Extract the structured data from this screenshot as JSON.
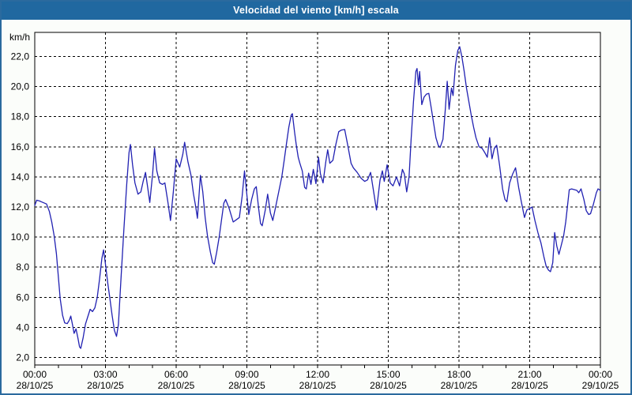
{
  "window": {
    "title": "Velocidad del viento [km/h] escala"
  },
  "colors": {
    "titlebar_bg": "#2068a0",
    "window_border": "#2a6a9e",
    "page_bg": "#fbfdfa",
    "plot_bg": "#ffffff",
    "grid": "#000000",
    "line": "#2121b2",
    "text": "#000000"
  },
  "chart_data": {
    "type": "line",
    "title": "Velocidad del viento [km/h] escala",
    "xlabel": "",
    "ylabel": "km/h",
    "xlim": [
      0,
      24
    ],
    "ylim": [
      1.5,
      23.6
    ],
    "grid": "dashed",
    "legend_position": "none",
    "y_ticks": [
      {
        "v": 2,
        "label": "2,0"
      },
      {
        "v": 4,
        "label": "4,0"
      },
      {
        "v": 6,
        "label": "6,0"
      },
      {
        "v": 8,
        "label": "8,0"
      },
      {
        "v": 10,
        "label": "10,0"
      },
      {
        "v": 12,
        "label": "12,0"
      },
      {
        "v": 14,
        "label": "14,0"
      },
      {
        "v": 16,
        "label": "16,0"
      },
      {
        "v": 18,
        "label": "18,0"
      },
      {
        "v": 20,
        "label": "20,0"
      },
      {
        "v": 22,
        "label": "22,0"
      }
    ],
    "x_ticks": [
      {
        "t": 0,
        "time": "00:00",
        "date": "28/10/25"
      },
      {
        "t": 3,
        "time": "03:00",
        "date": "28/10/25"
      },
      {
        "t": 6,
        "time": "06:00",
        "date": "28/10/25"
      },
      {
        "t": 9,
        "time": "09:00",
        "date": "28/10/25"
      },
      {
        "t": 12,
        "time": "12:00",
        "date": "28/10/25"
      },
      {
        "t": 15,
        "time": "15:00",
        "date": "28/10/25"
      },
      {
        "t": 18,
        "time": "18:00",
        "date": "28/10/25"
      },
      {
        "t": 21,
        "time": "21:00",
        "date": "28/10/25"
      },
      {
        "t": 24,
        "time": "00:00",
        "date": "29/10/25"
      }
    ],
    "minor_x_tick_every_hours": 1,
    "series": [
      {
        "name": "Velocidad del viento [km/h]",
        "color": "#2121b2",
        "points": [
          [
            0,
            12.1
          ],
          [
            0.08,
            12.45
          ],
          [
            0.2,
            12.4
          ],
          [
            0.35,
            12.3
          ],
          [
            0.5,
            12.2
          ],
          [
            0.62,
            11.7
          ],
          [
            0.72,
            11.0
          ],
          [
            0.82,
            10.1
          ],
          [
            0.92,
            8.9
          ],
          [
            1.0,
            7.4
          ],
          [
            1.08,
            5.9
          ],
          [
            1.18,
            4.8
          ],
          [
            1.27,
            4.3
          ],
          [
            1.38,
            4.25
          ],
          [
            1.47,
            4.5
          ],
          [
            1.53,
            4.75
          ],
          [
            1.6,
            4.2
          ],
          [
            1.67,
            3.6
          ],
          [
            1.75,
            3.9
          ],
          [
            1.83,
            3.3
          ],
          [
            1.9,
            2.7
          ],
          [
            1.95,
            2.6
          ],
          [
            2.05,
            3.3
          ],
          [
            2.15,
            4.2
          ],
          [
            2.25,
            4.7
          ],
          [
            2.35,
            5.2
          ],
          [
            2.45,
            5.05
          ],
          [
            2.55,
            5.3
          ],
          [
            2.65,
            6.0
          ],
          [
            2.75,
            7.2
          ],
          [
            2.85,
            8.6
          ],
          [
            2.92,
            9.15
          ],
          [
            3.0,
            8.2
          ],
          [
            3.1,
            6.9
          ],
          [
            3.18,
            6.0
          ],
          [
            3.28,
            4.8
          ],
          [
            3.38,
            3.8
          ],
          [
            3.47,
            3.4
          ],
          [
            3.55,
            4.2
          ],
          [
            3.65,
            7.0
          ],
          [
            3.78,
            10.5
          ],
          [
            3.9,
            13.5
          ],
          [
            4.0,
            15.6
          ],
          [
            4.06,
            16.15
          ],
          [
            4.15,
            14.8
          ],
          [
            4.25,
            13.6
          ],
          [
            4.38,
            12.85
          ],
          [
            4.5,
            13.0
          ],
          [
            4.6,
            13.7
          ],
          [
            4.7,
            14.3
          ],
          [
            4.8,
            13.2
          ],
          [
            4.88,
            12.3
          ],
          [
            5.0,
            14.2
          ],
          [
            5.08,
            15.9
          ],
          [
            5.18,
            14.4
          ],
          [
            5.3,
            13.6
          ],
          [
            5.42,
            13.5
          ],
          [
            5.52,
            13.6
          ],
          [
            5.65,
            12.3
          ],
          [
            5.76,
            11.1
          ],
          [
            5.88,
            13.0
          ],
          [
            6.0,
            15.2
          ],
          [
            6.15,
            14.65
          ],
          [
            6.28,
            15.5
          ],
          [
            6.36,
            16.3
          ],
          [
            6.5,
            15.0
          ],
          [
            6.63,
            14.1
          ],
          [
            6.73,
            12.9
          ],
          [
            6.83,
            12.0
          ],
          [
            6.9,
            11.25
          ],
          [
            7.03,
            14.1
          ],
          [
            7.13,
            13.0
          ],
          [
            7.23,
            11.3
          ],
          [
            7.33,
            10.05
          ],
          [
            7.45,
            9.0
          ],
          [
            7.55,
            8.3
          ],
          [
            7.62,
            8.2
          ],
          [
            7.72,
            9.0
          ],
          [
            7.83,
            10.05
          ],
          [
            7.92,
            11.1
          ],
          [
            8.02,
            12.25
          ],
          [
            8.1,
            12.5
          ],
          [
            8.25,
            11.9
          ],
          [
            8.42,
            11.0
          ],
          [
            8.55,
            11.15
          ],
          [
            8.68,
            11.3
          ],
          [
            8.8,
            12.7
          ],
          [
            8.9,
            14.4
          ],
          [
            9.0,
            12.8
          ],
          [
            9.08,
            11.5
          ],
          [
            9.2,
            12.5
          ],
          [
            9.32,
            13.2
          ],
          [
            9.4,
            13.35
          ],
          [
            9.5,
            11.9
          ],
          [
            9.58,
            10.9
          ],
          [
            9.65,
            10.75
          ],
          [
            9.78,
            11.8
          ],
          [
            9.88,
            12.85
          ],
          [
            10.0,
            11.6
          ],
          [
            10.1,
            11.1
          ],
          [
            10.22,
            12.0
          ],
          [
            10.35,
            13.0
          ],
          [
            10.48,
            14.0
          ],
          [
            10.58,
            15.05
          ],
          [
            10.68,
            16.2
          ],
          [
            10.78,
            17.3
          ],
          [
            10.88,
            18.1
          ],
          [
            10.93,
            18.2
          ],
          [
            11.02,
            17.0
          ],
          [
            11.1,
            16.1
          ],
          [
            11.18,
            15.3
          ],
          [
            11.25,
            14.9
          ],
          [
            11.35,
            14.4
          ],
          [
            11.45,
            13.3
          ],
          [
            11.52,
            13.2
          ],
          [
            11.62,
            14.25
          ],
          [
            11.72,
            13.5
          ],
          [
            11.82,
            14.5
          ],
          [
            11.93,
            13.55
          ],
          [
            12.04,
            15.3
          ],
          [
            12.12,
            14.2
          ],
          [
            12.23,
            13.6
          ],
          [
            12.35,
            15.0
          ],
          [
            12.43,
            15.8
          ],
          [
            12.52,
            14.9
          ],
          [
            12.65,
            15.1
          ],
          [
            12.78,
            16.2
          ],
          [
            12.9,
            17.0
          ],
          [
            13.0,
            17.1
          ],
          [
            13.15,
            17.15
          ],
          [
            13.28,
            16.1
          ],
          [
            13.42,
            14.9
          ],
          [
            13.52,
            14.6
          ],
          [
            13.68,
            14.3
          ],
          [
            13.85,
            13.9
          ],
          [
            14.0,
            13.7
          ],
          [
            14.12,
            13.8
          ],
          [
            14.25,
            14.3
          ],
          [
            14.38,
            13.0
          ],
          [
            14.5,
            11.8
          ],
          [
            14.65,
            13.8
          ],
          [
            14.75,
            14.4
          ],
          [
            14.83,
            13.7
          ],
          [
            14.95,
            14.8
          ],
          [
            15.08,
            13.6
          ],
          [
            15.2,
            13.4
          ],
          [
            15.35,
            14.0
          ],
          [
            15.48,
            13.4
          ],
          [
            15.6,
            14.5
          ],
          [
            15.68,
            14.2
          ],
          [
            15.78,
            13.0
          ],
          [
            15.88,
            14.0
          ],
          [
            15.97,
            16.5
          ],
          [
            16.07,
            19.0
          ],
          [
            16.17,
            21.0
          ],
          [
            16.22,
            21.2
          ],
          [
            16.28,
            20.1
          ],
          [
            16.33,
            21.0
          ],
          [
            16.42,
            18.8
          ],
          [
            16.52,
            19.3
          ],
          [
            16.62,
            19.5
          ],
          [
            16.72,
            19.55
          ],
          [
            16.82,
            18.6
          ],
          [
            16.92,
            17.6
          ],
          [
            17.02,
            16.6
          ],
          [
            17.12,
            16.1
          ],
          [
            17.2,
            15.95
          ],
          [
            17.32,
            16.5
          ],
          [
            17.42,
            18.5
          ],
          [
            17.5,
            20.35
          ],
          [
            17.58,
            18.5
          ],
          [
            17.68,
            19.9
          ],
          [
            17.75,
            19.4
          ],
          [
            17.85,
            21.4
          ],
          [
            17.95,
            22.4
          ],
          [
            18.03,
            22.65
          ],
          [
            18.12,
            22.0
          ],
          [
            18.22,
            21.0
          ],
          [
            18.32,
            19.9
          ],
          [
            18.42,
            19.0
          ],
          [
            18.52,
            18.1
          ],
          [
            18.62,
            17.3
          ],
          [
            18.72,
            16.6
          ],
          [
            18.85,
            16.0
          ],
          [
            18.98,
            15.9
          ],
          [
            19.1,
            15.6
          ],
          [
            19.2,
            15.3
          ],
          [
            19.3,
            16.6
          ],
          [
            19.4,
            15.2
          ],
          [
            19.5,
            15.9
          ],
          [
            19.6,
            16.1
          ],
          [
            19.72,
            14.8
          ],
          [
            19.85,
            13.2
          ],
          [
            19.95,
            12.5
          ],
          [
            20.03,
            12.35
          ],
          [
            20.15,
            13.6
          ],
          [
            20.28,
            14.2
          ],
          [
            20.4,
            14.6
          ],
          [
            20.53,
            13.3
          ],
          [
            20.65,
            12.3
          ],
          [
            20.78,
            11.3
          ],
          [
            20.88,
            11.8
          ],
          [
            21.0,
            11.9
          ],
          [
            21.1,
            12.0
          ],
          [
            21.22,
            11.1
          ],
          [
            21.35,
            10.3
          ],
          [
            21.48,
            9.6
          ],
          [
            21.6,
            8.7
          ],
          [
            21.7,
            8.05
          ],
          [
            21.8,
            7.8
          ],
          [
            21.88,
            7.7
          ],
          [
            21.98,
            8.3
          ],
          [
            22.06,
            10.3
          ],
          [
            22.15,
            9.4
          ],
          [
            22.24,
            8.85
          ],
          [
            22.33,
            9.4
          ],
          [
            22.44,
            10.1
          ],
          [
            22.53,
            11.0
          ],
          [
            22.6,
            12.0
          ],
          [
            22.68,
            13.15
          ],
          [
            22.78,
            13.2
          ],
          [
            22.9,
            13.15
          ],
          [
            23.0,
            13.1
          ],
          [
            23.08,
            12.95
          ],
          [
            23.18,
            13.2
          ],
          [
            23.3,
            12.5
          ],
          [
            23.4,
            11.75
          ],
          [
            23.5,
            11.5
          ],
          [
            23.58,
            11.55
          ],
          [
            23.7,
            12.15
          ],
          [
            23.83,
            12.95
          ],
          [
            23.9,
            13.2
          ],
          [
            24,
            13.1
          ]
        ]
      }
    ]
  }
}
